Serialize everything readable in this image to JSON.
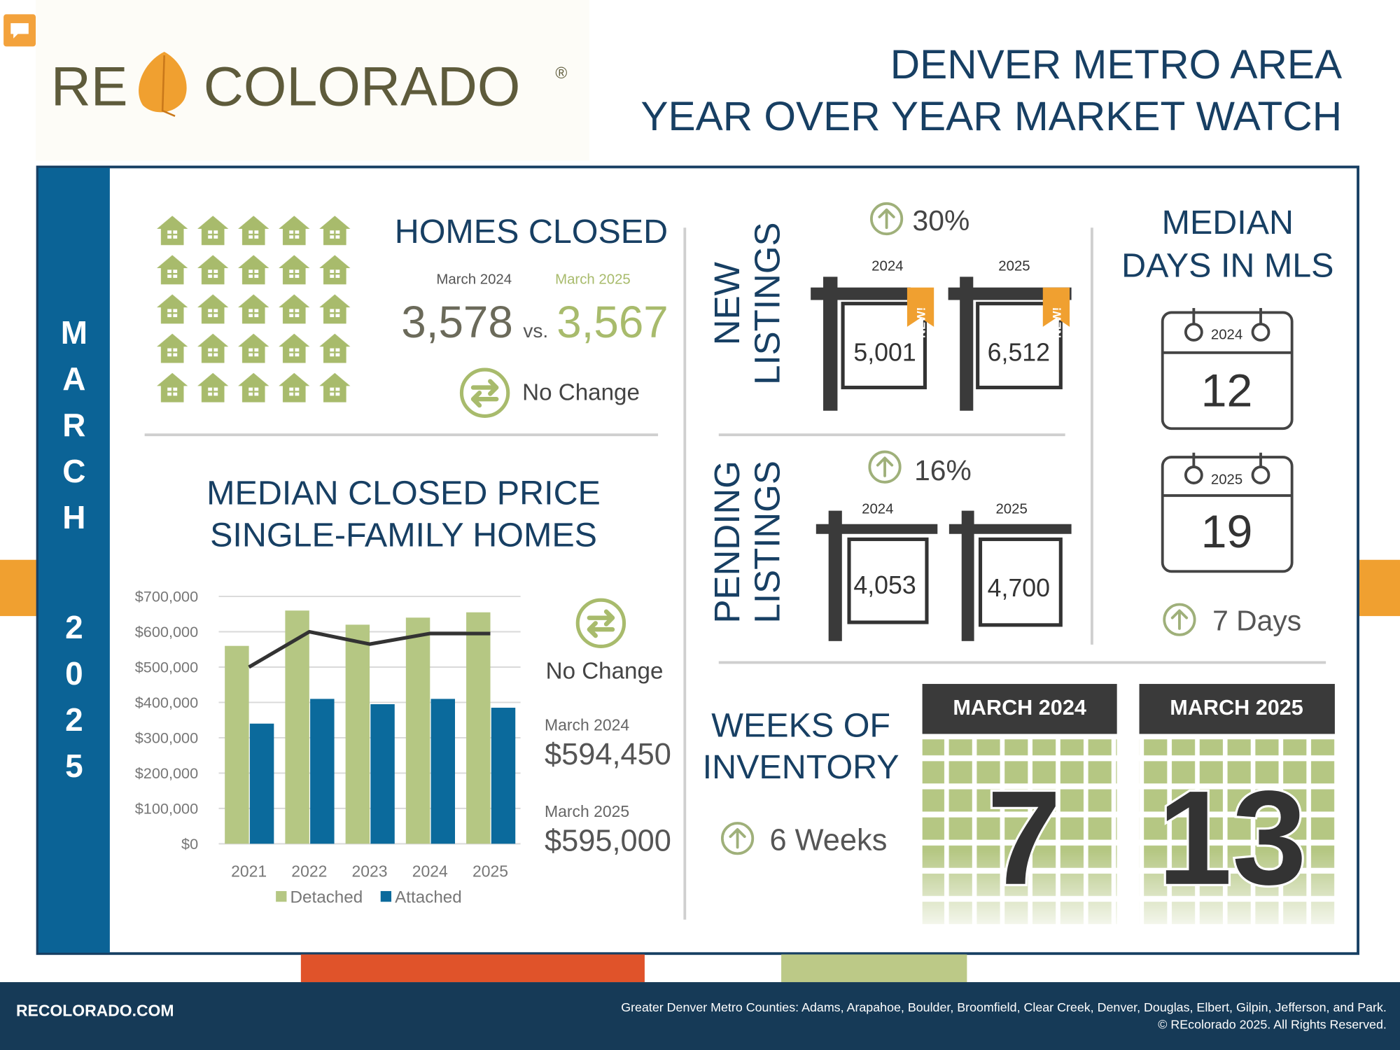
{
  "header": {
    "logo_re": "RE",
    "logo_colorado": "COLORADO",
    "logo_mark": "®",
    "title_line_1": "DENVER METRO AREA",
    "title_line_2": "YEAR OVER YEAR MARKET WATCH"
  },
  "sidebar": {
    "month": "MARCH",
    "year": "2025"
  },
  "homes_closed": {
    "title": "HOMES CLOSED",
    "label_2024": "March 2024",
    "label_2025": "March 2025",
    "value_2024": "3,578",
    "versus": "vs.",
    "value_2025": "3,567",
    "change": "No Change"
  },
  "median_price": {
    "title_lines": [
      "MEDIAN CLOSED PRICE",
      "SINGLE-FAMILY HOMES"
    ],
    "change": "No Change",
    "label_2024": "March 2024",
    "value_2024": "$594,450",
    "label_2025": "March 2025",
    "value_2025": "$595,000"
  },
  "new_listings": {
    "label_lines": [
      "NEW",
      "LISTINGS"
    ],
    "change": "30%",
    "sign_label": "NEW!",
    "year_2024": "2024",
    "year_2025": "2025",
    "value_2024": "5,001",
    "value_2025": "6,512"
  },
  "pending_listings": {
    "label_lines": [
      "PENDING",
      "LISTINGS"
    ],
    "change": "16%",
    "year_2024": "2024",
    "year_2025": "2025",
    "value_2024": "4,053",
    "value_2025": "4,700"
  },
  "days_in_mls": {
    "title_lines": [
      "MEDIAN",
      "DAYS IN MLS"
    ],
    "year_2024": "2024",
    "value_2024": "12",
    "year_2025": "2025",
    "value_2025": "19",
    "change": "7 Days"
  },
  "weeks_of_inventory": {
    "title_lines": [
      "WEEKS OF",
      "INVENTORY"
    ],
    "change": "6 Weeks",
    "label_2024": "MARCH 2024",
    "value_2024": "7",
    "label_2025": "MARCH 2025",
    "value_2025": "13"
  },
  "footer": {
    "site": "RECOLORADO.COM",
    "counties": "Greater Denver Metro Counties: Adams, Arapahoe, Boulder, Broomfield, Clear Creek, Denver, Douglas, Elbert, Gilpin, Jefferson, and Park.",
    "copyright": "© REcolorado 2025. All Rights Reserved."
  },
  "chart_data": {
    "type": "bar",
    "categories": [
      "2021",
      "2022",
      "2023",
      "2024",
      "2025"
    ],
    "series": [
      {
        "name": "Detached",
        "type": "bar",
        "color": "#b5c783",
        "values": [
          560000,
          660000,
          620000,
          640000,
          655000
        ]
      },
      {
        "name": "Attached",
        "type": "bar",
        "color": "#0b6a9c",
        "values": [
          340000,
          410000,
          395000,
          410000,
          385000
        ]
      },
      {
        "type": "line",
        "color": "#333333",
        "values": [
          500000,
          600000,
          565000,
          595000,
          595000
        ]
      }
    ],
    "ylim": [
      0,
      700000
    ],
    "yticks": [
      {
        "value": 0,
        "label": "$0"
      },
      {
        "value": 100000,
        "label": "$100,000"
      },
      {
        "value": 200000,
        "label": "$200,000"
      },
      {
        "value": 300000,
        "label": "$300,000"
      },
      {
        "value": 400000,
        "label": "$400,000"
      },
      {
        "value": 500000,
        "label": "$500,000"
      },
      {
        "value": 600000,
        "label": "$600,000"
      },
      {
        "value": 700000,
        "label": "$700,000"
      }
    ],
    "grid": true
  }
}
